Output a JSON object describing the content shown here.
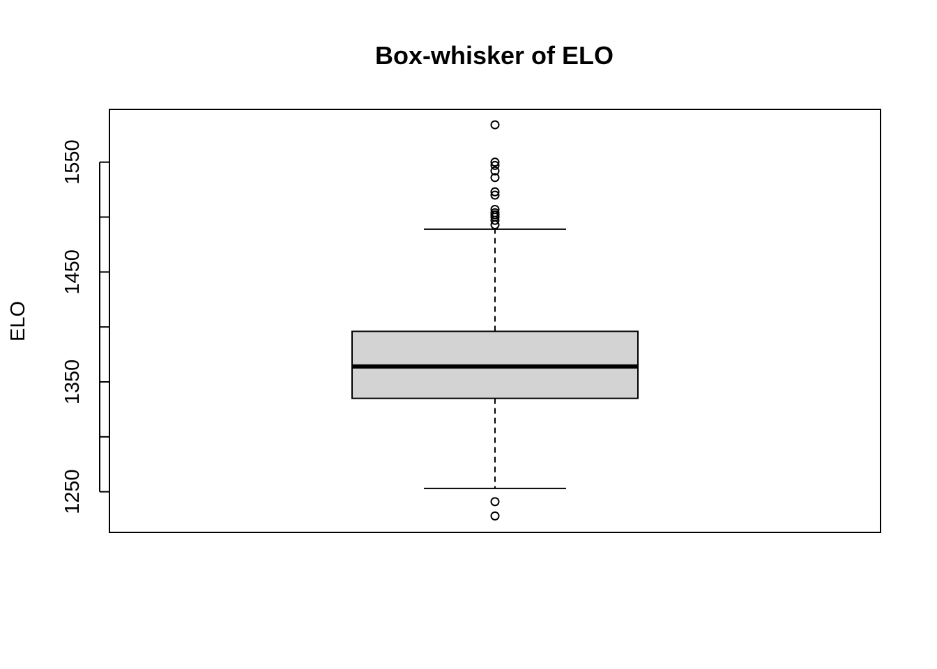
{
  "chart_data": {
    "type": "boxplot",
    "title": "Box-whisker of ELO",
    "xlabel": "",
    "ylabel": "ELO",
    "ylim": [
      1213,
      1598
    ],
    "yticks": [
      1250,
      1300,
      1350,
      1400,
      1450,
      1500,
      1550
    ],
    "ytick_labels": [
      "1250",
      "",
      "1350",
      "",
      "1450",
      "",
      "1550"
    ],
    "grid": false,
    "colors": {
      "box_fill": "#d3d3d3",
      "stroke": "#000000"
    },
    "box": {
      "whisker_low": 1253,
      "q1": 1335,
      "median": 1364,
      "q3": 1396,
      "whisker_high": 1489,
      "outliers": [
        1584,
        1550,
        1547,
        1542,
        1536,
        1523,
        1520,
        1507,
        1504,
        1502,
        1500,
        1497,
        1493,
        1241,
        1228
      ]
    }
  }
}
